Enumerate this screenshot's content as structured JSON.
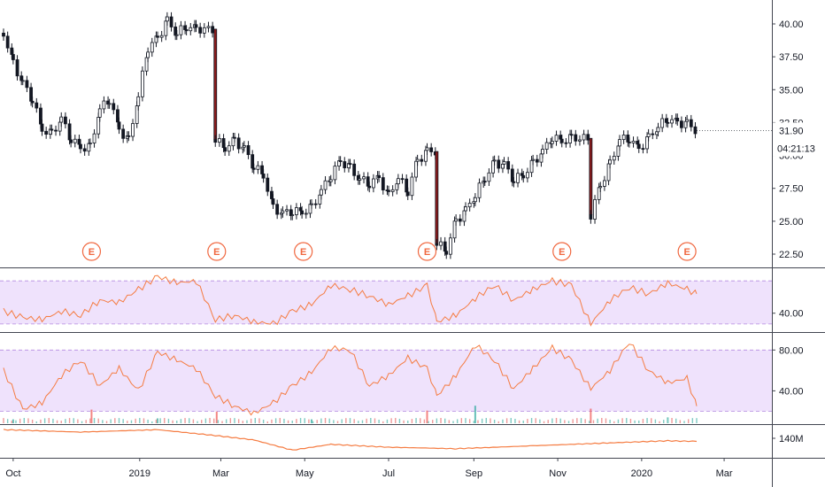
{
  "chart_data": [
    {
      "type": "candlestick",
      "panel": "price",
      "ylim": [
        21.5,
        41.5
      ],
      "y_ticks": [
        "40.00",
        "37.50",
        "35.00",
        "32.50",
        "30.00",
        "27.50",
        "25.00",
        "22.50"
      ],
      "last_price_label": "31.90",
      "countdown_label": "04:21:13",
      "x_ticks": [
        "Oct",
        "2019",
        "Mar",
        "May",
        "Jul",
        "Sep",
        "Nov",
        "2020",
        "Mar"
      ],
      "earnings_badges": [
        "E",
        "E",
        "E",
        "E",
        "E",
        "E"
      ],
      "earnings_dates": [
        "2018-11-27",
        "2019-02-26",
        "2019-04-30",
        "2019-07-29",
        "2019-11-04",
        "2020-02-03"
      ],
      "close_series": [
        {
          "date": "2018-09-24",
          "close": 39.3
        },
        {
          "date": "2018-10-01",
          "close": 37.0
        },
        {
          "date": "2018-10-08",
          "close": 35.5
        },
        {
          "date": "2018-10-15",
          "close": 34.3
        },
        {
          "date": "2018-10-22",
          "close": 32.0
        },
        {
          "date": "2018-10-29",
          "close": 31.6
        },
        {
          "date": "2018-11-05",
          "close": 32.8
        },
        {
          "date": "2018-11-12",
          "close": 31.3
        },
        {
          "date": "2018-11-19",
          "close": 30.6
        },
        {
          "date": "2018-11-26",
          "close": 30.6
        },
        {
          "date": "2018-12-03",
          "close": 33.5
        },
        {
          "date": "2018-12-10",
          "close": 34.3
        },
        {
          "date": "2018-12-17",
          "close": 32.0
        },
        {
          "date": "2018-12-24",
          "close": 31.1
        },
        {
          "date": "2018-12-31",
          "close": 34.5
        },
        {
          "date": "2019-01-07",
          "close": 38.2
        },
        {
          "date": "2019-01-14",
          "close": 38.9
        },
        {
          "date": "2019-01-21",
          "close": 40.2
        },
        {
          "date": "2019-01-28",
          "close": 39.3
        },
        {
          "date": "2019-02-04",
          "close": 39.8
        },
        {
          "date": "2019-02-11",
          "close": 39.6
        },
        {
          "date": "2019-02-25",
          "close": 31.2
        },
        {
          "date": "2019-03-04",
          "close": 30.6
        },
        {
          "date": "2019-03-11",
          "close": 31.1
        },
        {
          "date": "2019-03-18",
          "close": 30.5
        },
        {
          "date": "2019-03-25",
          "close": 29.2
        },
        {
          "date": "2019-04-01",
          "close": 28.5
        },
        {
          "date": "2019-04-08",
          "close": 26.0
        },
        {
          "date": "2019-04-15",
          "close": 25.6
        },
        {
          "date": "2019-04-22",
          "close": 25.8
        },
        {
          "date": "2019-04-29",
          "close": 25.7
        },
        {
          "date": "2019-05-06",
          "close": 26.0
        },
        {
          "date": "2019-05-13",
          "close": 27.3
        },
        {
          "date": "2019-05-20",
          "close": 28.5
        },
        {
          "date": "2019-05-27",
          "close": 29.6
        },
        {
          "date": "2019-06-03",
          "close": 29.0
        },
        {
          "date": "2019-06-10",
          "close": 28.2
        },
        {
          "date": "2019-06-17",
          "close": 27.9
        },
        {
          "date": "2019-06-24",
          "close": 28.3
        },
        {
          "date": "2019-07-01",
          "close": 26.9
        },
        {
          "date": "2019-07-08",
          "close": 28.3
        },
        {
          "date": "2019-07-15",
          "close": 27.3
        },
        {
          "date": "2019-07-22",
          "close": 29.6
        },
        {
          "date": "2019-07-29",
          "close": 30.3
        },
        {
          "date": "2019-08-05",
          "close": 23.3
        },
        {
          "date": "2019-08-12",
          "close": 22.8
        },
        {
          "date": "2019-08-19",
          "close": 25.0
        },
        {
          "date": "2019-08-26",
          "close": 25.8
        },
        {
          "date": "2019-09-02",
          "close": 27.0
        },
        {
          "date": "2019-09-09",
          "close": 28.3
        },
        {
          "date": "2019-09-16",
          "close": 29.4
        },
        {
          "date": "2019-09-23",
          "close": 29.3
        },
        {
          "date": "2019-09-30",
          "close": 28.2
        },
        {
          "date": "2019-10-07",
          "close": 28.5
        },
        {
          "date": "2019-10-14",
          "close": 29.4
        },
        {
          "date": "2019-10-21",
          "close": 30.3
        },
        {
          "date": "2019-10-28",
          "close": 31.4
        },
        {
          "date": "2019-11-04",
          "close": 31.1
        },
        {
          "date": "2019-11-11",
          "close": 31.3
        },
        {
          "date": "2019-11-25",
          "close": 25.5
        },
        {
          "date": "2019-12-02",
          "close": 27.7
        },
        {
          "date": "2019-12-09",
          "close": 29.3
        },
        {
          "date": "2019-12-16",
          "close": 31.2
        },
        {
          "date": "2019-12-23",
          "close": 31.3
        },
        {
          "date": "2019-12-30",
          "close": 30.5
        },
        {
          "date": "2020-01-06",
          "close": 31.3
        },
        {
          "date": "2020-01-13",
          "close": 32.2
        },
        {
          "date": "2020-01-20",
          "close": 32.8
        },
        {
          "date": "2020-01-27",
          "close": 32.5
        },
        {
          "date": "2020-02-03",
          "close": 32.4
        },
        {
          "date": "2020-02-10",
          "close": 31.9
        }
      ]
    },
    {
      "type": "line",
      "panel": "indicator-1",
      "y_ticks": [
        "40.00"
      ],
      "band": [
        30,
        70
      ],
      "color": "#f57c42",
      "series": [
        {
          "date": "2018-09-24",
          "value": 42
        },
        {
          "date": "2018-10-08",
          "value": 36
        },
        {
          "date": "2018-10-22",
          "value": 34
        },
        {
          "date": "2018-11-05",
          "value": 42
        },
        {
          "date": "2018-11-19",
          "value": 38
        },
        {
          "date": "2018-12-03",
          "value": 52
        },
        {
          "date": "2018-12-17",
          "value": 50
        },
        {
          "date": "2018-12-31",
          "value": 62
        },
        {
          "date": "2019-01-14",
          "value": 74
        },
        {
          "date": "2019-01-28",
          "value": 68
        },
        {
          "date": "2019-02-11",
          "value": 70
        },
        {
          "date": "2019-02-25",
          "value": 34
        },
        {
          "date": "2019-03-11",
          "value": 38
        },
        {
          "date": "2019-03-25",
          "value": 32
        },
        {
          "date": "2019-04-08",
          "value": 30
        },
        {
          "date": "2019-04-22",
          "value": 42
        },
        {
          "date": "2019-05-06",
          "value": 48
        },
        {
          "date": "2019-05-20",
          "value": 66
        },
        {
          "date": "2019-06-03",
          "value": 62
        },
        {
          "date": "2019-06-17",
          "value": 56
        },
        {
          "date": "2019-07-01",
          "value": 48
        },
        {
          "date": "2019-07-15",
          "value": 56
        },
        {
          "date": "2019-07-29",
          "value": 66
        },
        {
          "date": "2019-08-05",
          "value": 32
        },
        {
          "date": "2019-08-19",
          "value": 38
        },
        {
          "date": "2019-09-02",
          "value": 54
        },
        {
          "date": "2019-09-16",
          "value": 66
        },
        {
          "date": "2019-09-30",
          "value": 52
        },
        {
          "date": "2019-10-14",
          "value": 62
        },
        {
          "date": "2019-10-28",
          "value": 70
        },
        {
          "date": "2019-11-11",
          "value": 66
        },
        {
          "date": "2019-11-25",
          "value": 30
        },
        {
          "date": "2019-12-09",
          "value": 52
        },
        {
          "date": "2019-12-23",
          "value": 64
        },
        {
          "date": "2020-01-06",
          "value": 58
        },
        {
          "date": "2020-01-20",
          "value": 68
        },
        {
          "date": "2020-02-03",
          "value": 62
        },
        {
          "date": "2020-02-10",
          "value": 58
        }
      ]
    },
    {
      "type": "line",
      "panel": "indicator-2",
      "y_ticks": [
        "80.00",
        "40.00"
      ],
      "band": [
        20,
        80
      ],
      "color": "#f57c42",
      "series": [
        {
          "date": "2018-09-24",
          "value": 60
        },
        {
          "date": "2018-10-08",
          "value": 22
        },
        {
          "date": "2018-10-22",
          "value": 28
        },
        {
          "date": "2018-11-05",
          "value": 55
        },
        {
          "date": "2018-11-19",
          "value": 70
        },
        {
          "date": "2018-12-03",
          "value": 45
        },
        {
          "date": "2018-12-17",
          "value": 62
        },
        {
          "date": "2018-12-31",
          "value": 40
        },
        {
          "date": "2019-01-14",
          "value": 78
        },
        {
          "date": "2019-01-28",
          "value": 70
        },
        {
          "date": "2019-02-11",
          "value": 62
        },
        {
          "date": "2019-02-25",
          "value": 35
        },
        {
          "date": "2019-03-11",
          "value": 25
        },
        {
          "date": "2019-03-25",
          "value": 18
        },
        {
          "date": "2019-04-08",
          "value": 28
        },
        {
          "date": "2019-04-22",
          "value": 45
        },
        {
          "date": "2019-05-06",
          "value": 58
        },
        {
          "date": "2019-05-20",
          "value": 82
        },
        {
          "date": "2019-06-03",
          "value": 80
        },
        {
          "date": "2019-06-17",
          "value": 45
        },
        {
          "date": "2019-07-01",
          "value": 55
        },
        {
          "date": "2019-07-15",
          "value": 72
        },
        {
          "date": "2019-07-29",
          "value": 62
        },
        {
          "date": "2019-08-05",
          "value": 35
        },
        {
          "date": "2019-08-19",
          "value": 55
        },
        {
          "date": "2019-09-02",
          "value": 85
        },
        {
          "date": "2019-09-16",
          "value": 70
        },
        {
          "date": "2019-09-30",
          "value": 42
        },
        {
          "date": "2019-10-14",
          "value": 62
        },
        {
          "date": "2019-10-28",
          "value": 82
        },
        {
          "date": "2019-11-11",
          "value": 70
        },
        {
          "date": "2019-11-25",
          "value": 42
        },
        {
          "date": "2019-12-09",
          "value": 60
        },
        {
          "date": "2019-12-23",
          "value": 88
        },
        {
          "date": "2020-01-06",
          "value": 60
        },
        {
          "date": "2020-01-20",
          "value": 48
        },
        {
          "date": "2020-02-03",
          "value": 52
        },
        {
          "date": "2020-02-10",
          "value": 25
        }
      ]
    },
    {
      "type": "line",
      "panel": "volume-line",
      "y_ticks": [
        "140M"
      ],
      "color": "#f57c42",
      "series": [
        {
          "date": "2018-09-24",
          "value": 100
        },
        {
          "date": "2018-11-19",
          "value": 92
        },
        {
          "date": "2019-01-14",
          "value": 100
        },
        {
          "date": "2019-02-25",
          "value": 80
        },
        {
          "date": "2019-03-25",
          "value": 65
        },
        {
          "date": "2019-04-22",
          "value": 30
        },
        {
          "date": "2019-05-20",
          "value": 50
        },
        {
          "date": "2019-07-01",
          "value": 40
        },
        {
          "date": "2019-08-19",
          "value": 35
        },
        {
          "date": "2019-10-14",
          "value": 45
        },
        {
          "date": "2019-12-09",
          "value": 55
        },
        {
          "date": "2020-01-20",
          "value": 62
        },
        {
          "date": "2020-02-10",
          "value": 60
        }
      ]
    },
    {
      "type": "bar",
      "panel": "volume-bars",
      "color_up": "#26a69a",
      "color_down": "#ef5350",
      "series": [
        {
          "date": "2018-10-01",
          "value": 20
        },
        {
          "date": "2018-11-27",
          "value": 70
        },
        {
          "date": "2019-01-14",
          "value": 25
        },
        {
          "date": "2019-02-26",
          "value": 60
        },
        {
          "date": "2019-05-06",
          "value": 20
        },
        {
          "date": "2019-07-29",
          "value": 65
        },
        {
          "date": "2019-09-02",
          "value": 90
        },
        {
          "date": "2019-11-25",
          "value": 75
        },
        {
          "date": "2020-01-20",
          "value": 30
        }
      ]
    }
  ]
}
